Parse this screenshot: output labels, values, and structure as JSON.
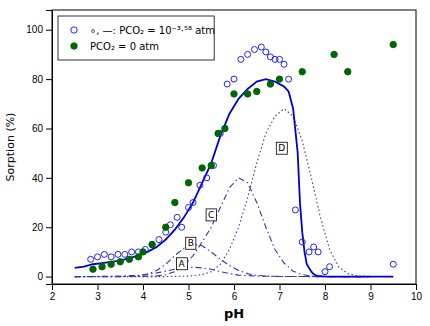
{
  "chart_data": {
    "type": "line",
    "xlabel": "pH",
    "ylabel": "Sorption (%)",
    "xlim": [
      2,
      10
    ],
    "ylim": [
      -3,
      108
    ],
    "xticks": [
      2,
      3,
      4,
      5,
      6,
      7,
      8,
      9,
      10
    ],
    "yticks": [
      0,
      20,
      40,
      60,
      80,
      100
    ],
    "grid": false,
    "legend": "upper left",
    "series": [
      {
        "type": "line",
        "line_style": "dashdot",
        "color": "#3333bb",
        "x": [
          2.5,
          3.0,
          3.5,
          3.9,
          4.1,
          4.3,
          4.5,
          4.7,
          4.9,
          5.1,
          5.3,
          5.5,
          5.7,
          5.9,
          6.1,
          6.5,
          7.0,
          7.5,
          8.0,
          9.0
        ],
        "values": [
          0.0,
          0.05,
          0.15,
          0.5,
          0.9,
          1.5,
          2.2,
          3.0,
          3.5,
          3.8,
          3.5,
          3.0,
          2.0,
          1.2,
          0.6,
          0.2,
          0.05,
          0.02,
          0.0,
          0.0
        ]
      },
      {
        "type": "line",
        "line_style": "dashdot",
        "color": "#3333bb",
        "x": [
          2.5,
          3.0,
          3.5,
          3.9,
          4.1,
          4.3,
          4.5,
          4.7,
          4.9,
          5.1,
          5.3,
          5.5,
          5.7,
          5.9,
          6.1,
          6.3,
          6.5,
          6.7,
          7.0,
          7.5,
          8.0,
          9.0
        ],
        "values": [
          0.0,
          0.02,
          0.1,
          0.4,
          1.0,
          2.5,
          5.0,
          8.5,
          11.5,
          13.0,
          12.5,
          10.0,
          7.0,
          4.5,
          2.5,
          1.2,
          0.5,
          0.2,
          0.05,
          0.01,
          0.0,
          0.0
        ]
      },
      {
        "type": "line",
        "line_style": "dashdot",
        "color": "#3333bb",
        "x": [
          2.5,
          3.5,
          4.0,
          4.3,
          4.5,
          4.7,
          4.9,
          5.1,
          5.3,
          5.5,
          5.7,
          5.9,
          6.1,
          6.3,
          6.5,
          6.7,
          6.9,
          7.1,
          7.3,
          7.5,
          7.7,
          8.0,
          8.5,
          9.0
        ],
        "values": [
          0.0,
          0.0,
          0.1,
          0.3,
          0.8,
          2.0,
          4.5,
          8.5,
          14.0,
          20.0,
          28.0,
          36.0,
          40.0,
          38.0,
          30.0,
          20.0,
          11.0,
          5.5,
          2.2,
          0.8,
          0.2,
          0.03,
          0.0,
          0.0
        ]
      },
      {
        "type": "line",
        "line_style": "dotted",
        "color": "#3333bb",
        "x": [
          2.5,
          4.5,
          5.0,
          5.3,
          5.5,
          5.7,
          5.9,
          6.1,
          6.3,
          6.5,
          6.7,
          6.9,
          7.1,
          7.3,
          7.5,
          7.7,
          7.9,
          8.1,
          8.3,
          8.5,
          8.7,
          9.0,
          9.5
        ],
        "values": [
          0.0,
          0.0,
          0.2,
          0.8,
          2.0,
          5.0,
          11.0,
          20.0,
          32.0,
          46.0,
          58.0,
          65.0,
          68.0,
          65.0,
          55.0,
          40.0,
          24.0,
          11.0,
          4.0,
          1.2,
          0.3,
          0.05,
          0.0
        ]
      },
      {
        "type": "line",
        "line_style": "solid",
        "color": "#0000cc",
        "x": [
          2.5,
          2.7,
          2.9,
          3.1,
          3.3,
          3.5,
          3.7,
          3.9,
          4.1,
          4.3,
          4.5,
          4.7,
          4.9,
          5.1,
          5.3,
          5.5,
          5.7,
          5.9,
          6.1,
          6.3,
          6.5,
          6.7,
          6.9,
          7.1,
          7.2,
          7.3,
          7.4,
          7.45,
          7.5,
          7.55,
          7.6,
          7.7,
          7.75,
          7.8,
          7.85,
          7.9,
          7.95,
          8.0,
          8.1,
          8.5,
          9.0,
          9.5
        ],
        "values": [
          3.5,
          4,
          5,
          5.5,
          6,
          6.5,
          7.5,
          8.5,
          10,
          12,
          15,
          19,
          24,
          30,
          38,
          46,
          57,
          66,
          72,
          76,
          79,
          80,
          79,
          77,
          75,
          68,
          50,
          30,
          18,
          10,
          5,
          2,
          1,
          0.5,
          0.3,
          0.2,
          0.1,
          0.05,
          0,
          0,
          0,
          0
        ]
      },
      {
        "name": "∘, —: PCO₂ = 10⁻³·⁵⁸ atm",
        "type": "scatter",
        "marker": "circle-open",
        "color": "#2222ee",
        "x": [
          2.85,
          3.0,
          3.15,
          3.3,
          3.45,
          3.6,
          3.75,
          3.9,
          4.05,
          4.2,
          4.35,
          4.5,
          4.6,
          4.75,
          4.85,
          5.0,
          5.1,
          5.25,
          5.4,
          5.55,
          5.7,
          5.85,
          6.0,
          6.15,
          6.3,
          6.45,
          6.6,
          6.7,
          6.8,
          6.9,
          7.0,
          7.1,
          7.2,
          7.35,
          7.5,
          7.65,
          7.75,
          7.85,
          8.0,
          8.1,
          9.5
        ],
        "values": [
          7,
          8,
          9,
          8,
          9,
          9,
          10,
          10,
          11,
          13,
          15,
          18,
          21,
          24,
          20,
          28,
          30,
          37,
          40,
          45,
          58,
          78,
          80,
          88,
          90,
          92,
          93,
          91,
          89,
          88,
          88,
          86,
          80,
          27,
          14,
          10,
          12,
          10,
          2,
          4,
          5
        ]
      },
      {
        "name": "PCO₂ = 0 atm",
        "type": "scatter",
        "marker": "circle",
        "color": "#006600",
        "x": [
          2.9,
          3.1,
          3.3,
          3.5,
          3.7,
          3.9,
          4.0,
          4.2,
          4.5,
          4.7,
          5.0,
          5.3,
          5.5,
          5.65,
          5.8,
          6.0,
          6.3,
          6.5,
          6.8,
          7.0,
          7.5,
          8.2,
          8.5,
          9.5
        ],
        "values": [
          3,
          4,
          5,
          6,
          7,
          8,
          10,
          13,
          20,
          30,
          38,
          44,
          45,
          58,
          60,
          74,
          74,
          75,
          78,
          80,
          83,
          90,
          83,
          94
        ]
      }
    ],
    "annotations": [
      {
        "text": "A",
        "x": 4.85,
        "y": 5.2
      },
      {
        "text": "B",
        "x": 5.05,
        "y": 13.5
      },
      {
        "text": "C",
        "x": 5.5,
        "y": 25.0
      },
      {
        "text": "D",
        "x": 7.05,
        "y": 52.0
      }
    ]
  }
}
